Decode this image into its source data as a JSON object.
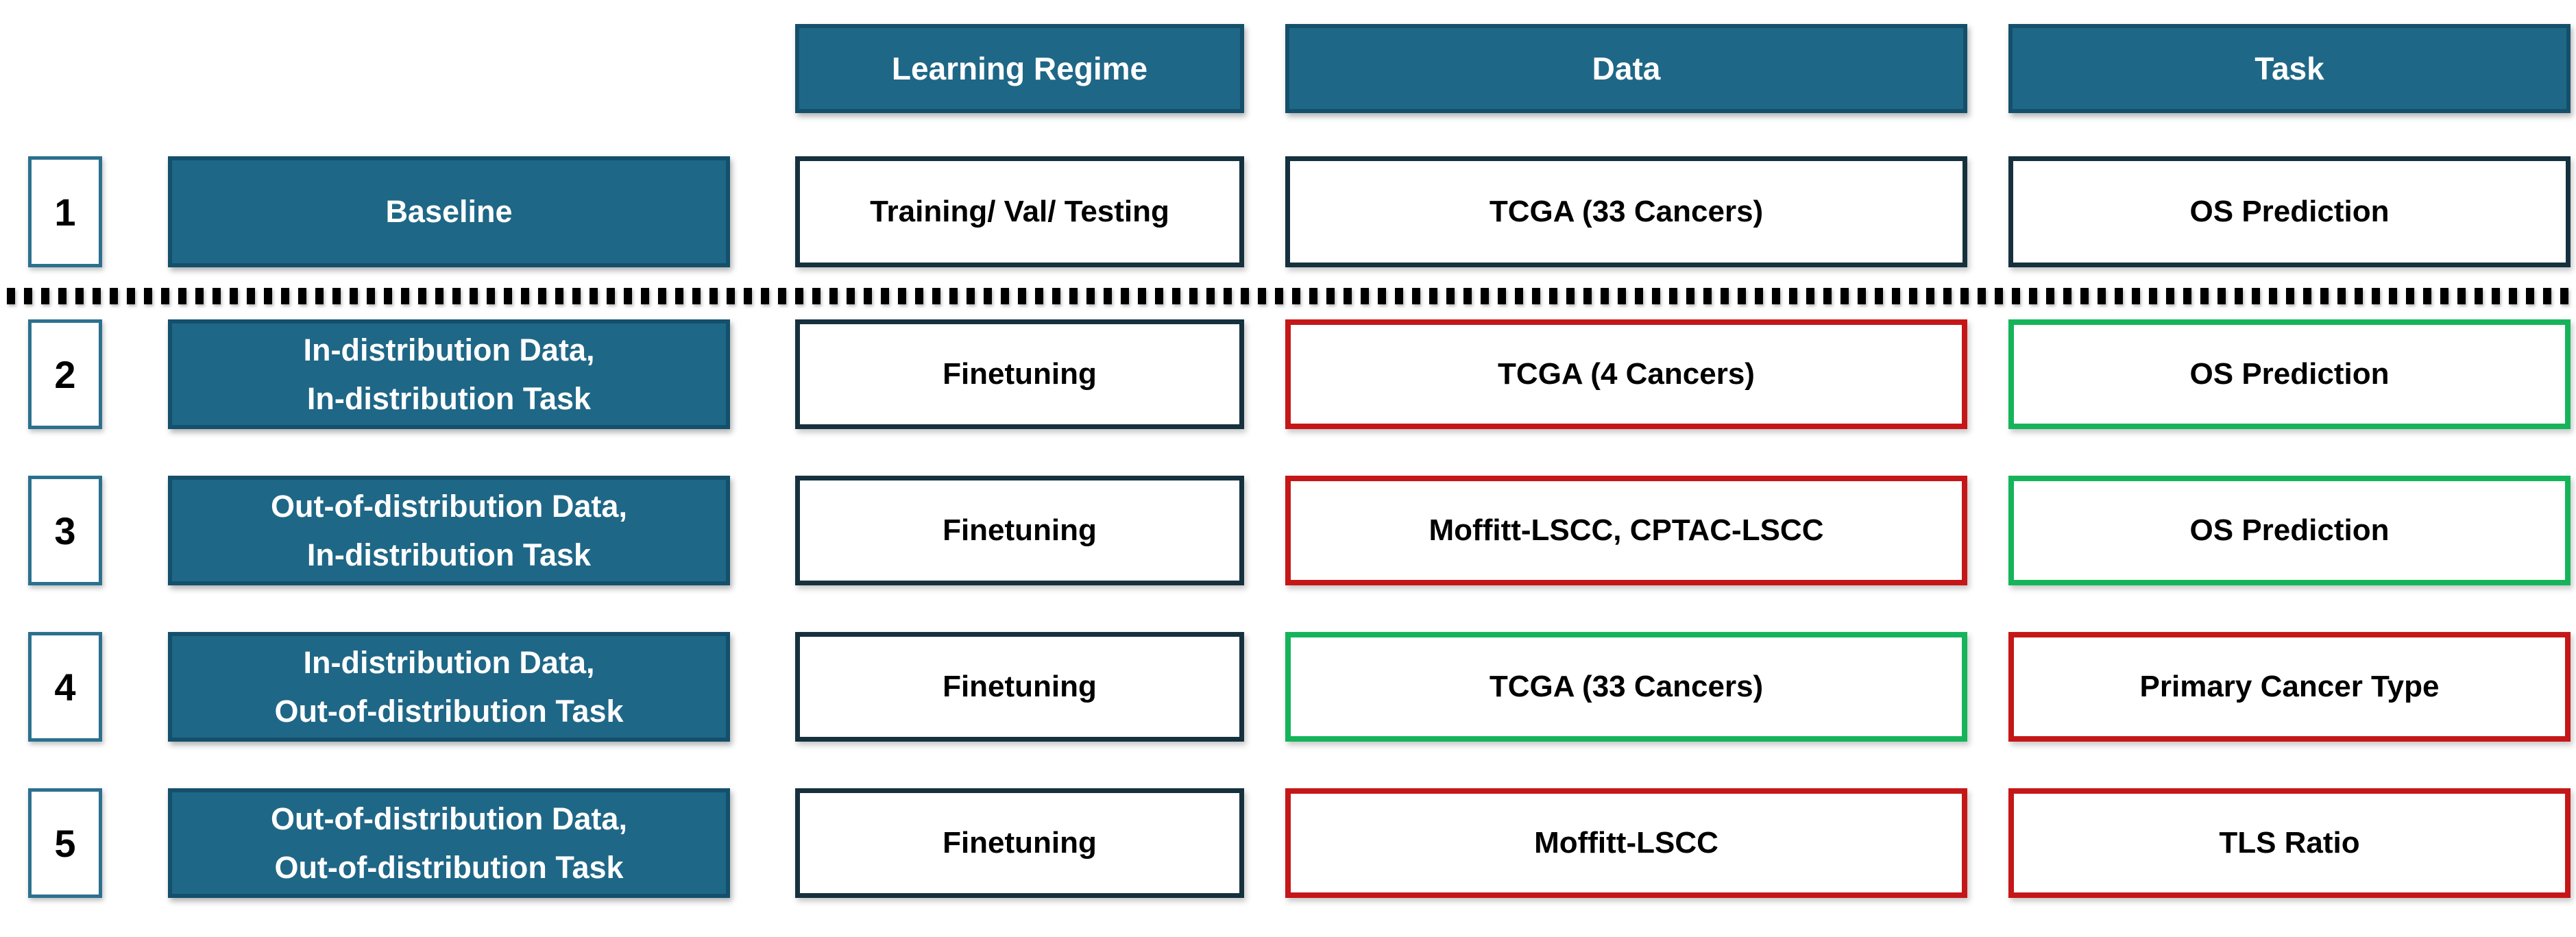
{
  "header": {
    "columns": [
      {
        "label": "Learning Regime"
      },
      {
        "label": "Data"
      },
      {
        "label": "Task"
      }
    ]
  },
  "rows": [
    {
      "number": "1",
      "label": "Baseline",
      "regime": "Training/ Val/ Testing",
      "data": {
        "text": "TCGA (33 Cancers)",
        "border": "dark"
      },
      "task": {
        "text": "OS Prediction",
        "border": "dark"
      }
    },
    {
      "number": "2",
      "label": "In-distribution Data,\nIn-distribution Task",
      "regime": "Finetuning",
      "data": {
        "text": "TCGA (4 Cancers)",
        "border": "red"
      },
      "task": {
        "text": "OS Prediction",
        "border": "green"
      }
    },
    {
      "number": "3",
      "label": "Out-of-distribution Data,\nIn-distribution Task",
      "regime": "Finetuning",
      "data": {
        "text": "Moffitt-LSCC, CPTAC-LSCC",
        "border": "red"
      },
      "task": {
        "text": "OS Prediction",
        "border": "green"
      }
    },
    {
      "number": "4",
      "label": "In-distribution Data,\nOut-of-distribution Task",
      "regime": "Finetuning",
      "data": {
        "text": "TCGA (33 Cancers)",
        "border": "green"
      },
      "task": {
        "text": "Primary Cancer Type",
        "border": "red"
      }
    },
    {
      "number": "5",
      "label": "Out-of-distribution Data,\nOut-of-distribution Task",
      "regime": "Finetuning",
      "data": {
        "text": "Moffitt-LSCC",
        "border": "red"
      },
      "task": {
        "text": "TLS Ratio",
        "border": "red"
      }
    }
  ],
  "colors": {
    "teal": "#1F6787",
    "teal_border": "#14506B",
    "dark_border": "#16313E",
    "red_border": "#C51718",
    "green_border": "#16B45A",
    "number_border": "#2C708F"
  }
}
